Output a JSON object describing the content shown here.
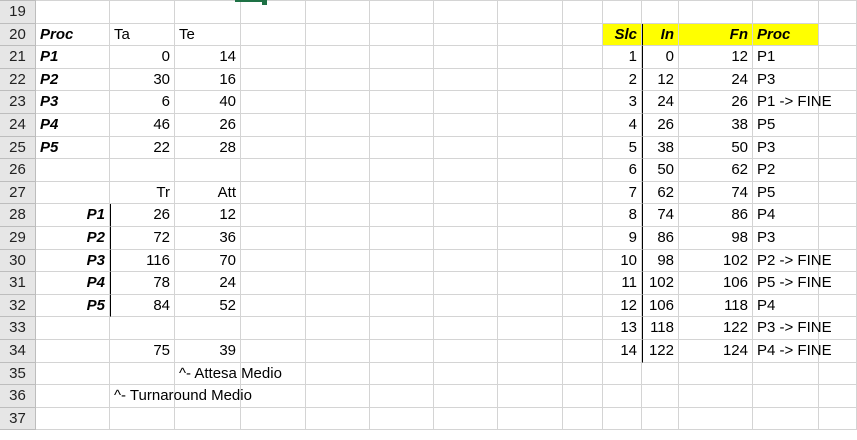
{
  "row_numbers": [
    "19",
    "20",
    "21",
    "22",
    "23",
    "24",
    "25",
    "26",
    "27",
    "28",
    "29",
    "30",
    "31",
    "32",
    "33",
    "34",
    "35",
    "36",
    "37"
  ],
  "proc_table": {
    "headers": [
      "Proc",
      "Ta",
      "Te"
    ],
    "rows": [
      [
        "P1",
        "0",
        "14"
      ],
      [
        "P2",
        "30",
        "16"
      ],
      [
        "P3",
        "6",
        "40"
      ],
      [
        "P4",
        "46",
        "26"
      ],
      [
        "P5",
        "22",
        "28"
      ]
    ]
  },
  "result_table": {
    "headers": [
      "Tr",
      "Att"
    ],
    "rows": [
      [
        "P1",
        "26",
        "12"
      ],
      [
        "P2",
        "72",
        "36"
      ],
      [
        "P3",
        "116",
        "70"
      ],
      [
        "P4",
        "78",
        "24"
      ],
      [
        "P5",
        "84",
        "52"
      ]
    ],
    "averages": [
      "75",
      "39"
    ]
  },
  "notes": {
    "attesa": "^- Attesa Medio",
    "turnaround": "^- Turnaround Medio"
  },
  "slice_table": {
    "headers": [
      "Slc",
      "In",
      "Fn",
      "Proc"
    ],
    "rows": [
      [
        "1",
        "0",
        "12",
        "P1"
      ],
      [
        "2",
        "12",
        "24",
        "P3"
      ],
      [
        "3",
        "24",
        "26",
        "P1 -> FINE"
      ],
      [
        "4",
        "26",
        "38",
        "P5"
      ],
      [
        "5",
        "38",
        "50",
        "P3"
      ],
      [
        "6",
        "50",
        "62",
        "P2"
      ],
      [
        "7",
        "62",
        "74",
        "P5"
      ],
      [
        "8",
        "74",
        "86",
        "P4"
      ],
      [
        "9",
        "86",
        "98",
        "P3"
      ],
      [
        "10",
        "98",
        "102",
        "P2 -> FINE"
      ],
      [
        "11",
        "102",
        "106",
        "P5 -> FINE"
      ],
      [
        "12",
        "106",
        "118",
        "P4"
      ],
      [
        "13",
        "118",
        "122",
        "P3 -> FINE"
      ],
      [
        "14",
        "122",
        "124",
        "P4 -> FINE"
      ]
    ]
  },
  "colors": {
    "highlight": "#ffff00",
    "selection": "#1e7145",
    "gridline": "#d4d4d4"
  }
}
